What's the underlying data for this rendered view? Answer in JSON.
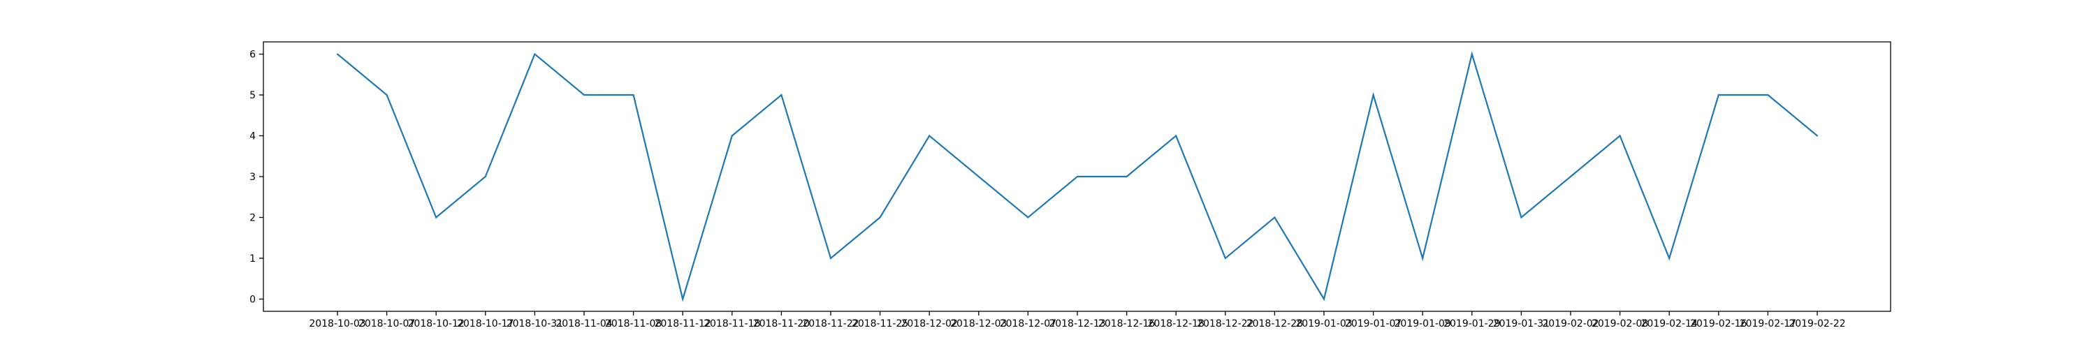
{
  "chart_data": {
    "type": "line",
    "x": [
      "2018-10-03",
      "2018-10-07",
      "2018-10-12",
      "2018-10-17",
      "2018-10-31",
      "2018-11-04",
      "2018-11-08",
      "2018-11-12",
      "2018-11-18",
      "2018-11-20",
      "2018-11-22",
      "2018-11-25",
      "2018-12-02",
      "2018-12-03",
      "2018-12-07",
      "2018-12-13",
      "2018-12-16",
      "2018-12-18",
      "2018-12-22",
      "2018-12-28",
      "2019-01-03",
      "2019-01-07",
      "2019-01-09",
      "2019-01-29",
      "2019-01-31",
      "2019-02-02",
      "2019-02-08",
      "2019-02-14",
      "2019-02-16",
      "2019-02-17",
      "2019-02-22"
    ],
    "series": [
      {
        "values": [
          6,
          5,
          2,
          3,
          6,
          5,
          5,
          0,
          4,
          5,
          1,
          2,
          4,
          3,
          2,
          3,
          3,
          4,
          1,
          2,
          0,
          5,
          1,
          6,
          2,
          3,
          4,
          1,
          5,
          5,
          4
        ]
      }
    ],
    "yticks": [
      "0",
      "1",
      "2",
      "3",
      "4",
      "5",
      "6"
    ],
    "ylim": [
      -0.3,
      6.3
    ],
    "grid": false,
    "title": "",
    "xlabel": "",
    "ylabel": "",
    "colors": {
      "line": "#1f77b4",
      "axes": "#000000",
      "background": "#ffffff"
    }
  }
}
